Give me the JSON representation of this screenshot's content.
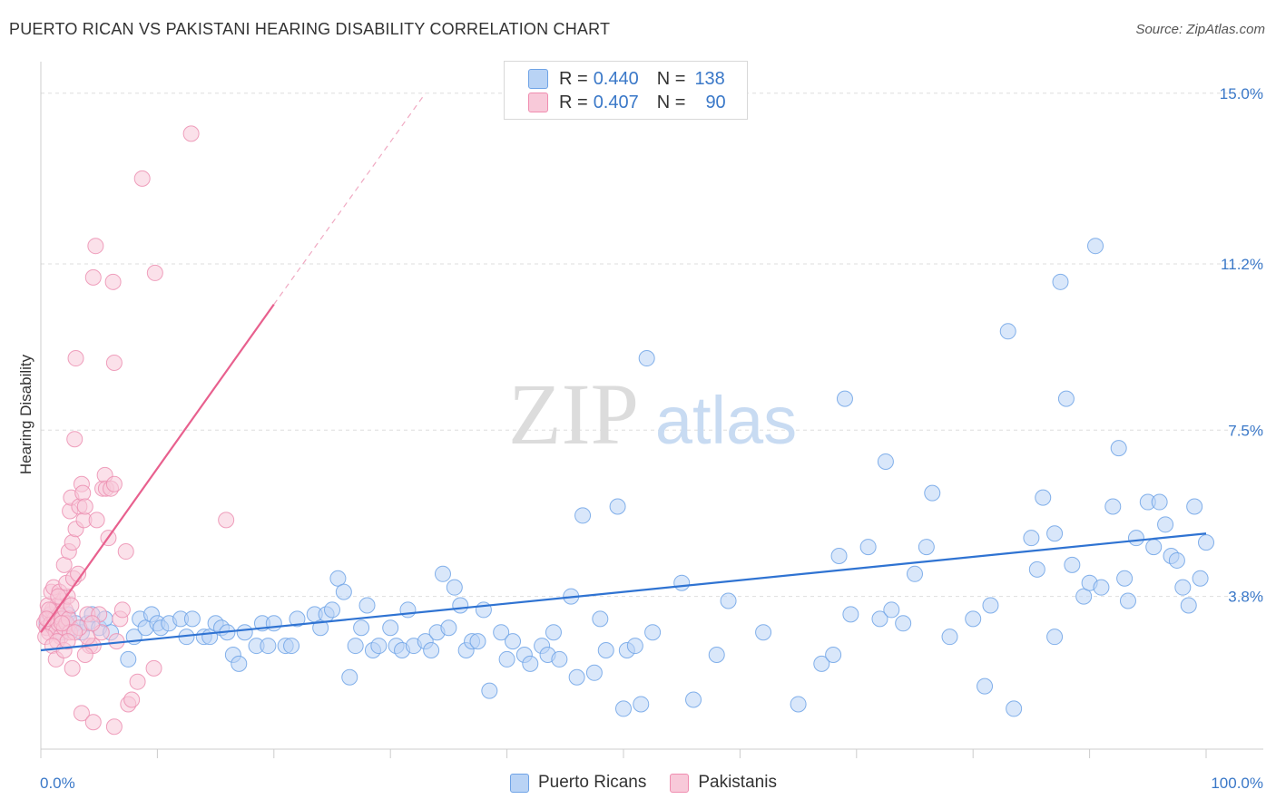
{
  "header": {
    "title": "PUERTO RICAN VS PAKISTANI HEARING DISABILITY CORRELATION CHART",
    "source": "Source: ZipAtlas.com"
  },
  "watermark": {
    "zip": "ZIP",
    "atlas": "atlas"
  },
  "legend": {
    "r_label": "R =",
    "n_label": "N =",
    "rows": [
      {
        "r": "0.440",
        "n": "138",
        "color": "#6fa3e6",
        "fill": "#b9d3f5"
      },
      {
        "r": "0.407",
        "n": "90",
        "color": "#f08db0",
        "fill": "#f8c9d9"
      }
    ]
  },
  "bottom_legend": {
    "items": [
      "Puerto Ricans",
      "Pakistanis"
    ]
  },
  "chart_data": {
    "type": "scatter",
    "title": "PUERTO RICAN VS PAKISTANI HEARING DISABILITY CORRELATION CHART",
    "xlabel": "",
    "ylabel": "Hearing Disability",
    "xlim": [
      0,
      100
    ],
    "ylim": [
      0.4,
      15.5
    ],
    "x_tick_labels": [
      "0.0%",
      "100.0%"
    ],
    "y_ticks": [
      3.8,
      7.5,
      11.2,
      15.0
    ],
    "y_tick_labels": [
      "3.8%",
      "7.5%",
      "11.2%",
      "15.0%"
    ],
    "colors": {
      "blue": "#2f73d2",
      "pink": "#e8608e",
      "blue_fill": "#b9d3f5",
      "pink_fill": "#f8c9d9"
    },
    "series": [
      {
        "name": "Puerto Ricans",
        "r": 0.44,
        "n": 138,
        "trend": {
          "x0": 0,
          "y0": 2.6,
          "x1": 100,
          "y1": 5.2
        },
        "points": [
          [
            0.5,
            3.2
          ],
          [
            0.8,
            3.4
          ],
          [
            1.0,
            3.3
          ],
          [
            1.2,
            3.1
          ],
          [
            1.5,
            3.3
          ],
          [
            1.8,
            3.0
          ],
          [
            2.0,
            3.3
          ],
          [
            2.3,
            3.4
          ],
          [
            2.6,
            3.1
          ],
          [
            3.0,
            3.2
          ],
          [
            3.5,
            3.0
          ],
          [
            4.0,
            3.2
          ],
          [
            4.4,
            3.4
          ],
          [
            5.0,
            3.1
          ],
          [
            5.5,
            3.3
          ],
          [
            6.0,
            3.0
          ],
          [
            7.5,
            2.4
          ],
          [
            8.0,
            2.9
          ],
          [
            8.5,
            3.3
          ],
          [
            9.0,
            3.1
          ],
          [
            9.5,
            3.4
          ],
          [
            10.0,
            3.2
          ],
          [
            10.3,
            3.1
          ],
          [
            11.0,
            3.2
          ],
          [
            12.0,
            3.3
          ],
          [
            12.5,
            2.9
          ],
          [
            13.0,
            3.3
          ],
          [
            14.0,
            2.9
          ],
          [
            14.5,
            2.9
          ],
          [
            15.0,
            3.2
          ],
          [
            15.5,
            3.1
          ],
          [
            16.0,
            3.0
          ],
          [
            16.5,
            2.5
          ],
          [
            17.0,
            2.3
          ],
          [
            17.5,
            3.0
          ],
          [
            18.5,
            2.7
          ],
          [
            19.0,
            3.2
          ],
          [
            19.5,
            2.7
          ],
          [
            20.0,
            3.2
          ],
          [
            21.0,
            2.7
          ],
          [
            21.5,
            2.7
          ],
          [
            22.0,
            3.3
          ],
          [
            23.5,
            3.4
          ],
          [
            24.0,
            3.1
          ],
          [
            24.5,
            3.4
          ],
          [
            25.0,
            3.5
          ],
          [
            25.5,
            4.2
          ],
          [
            26.0,
            3.9
          ],
          [
            26.5,
            2.0
          ],
          [
            27.0,
            2.7
          ],
          [
            27.5,
            3.1
          ],
          [
            28.0,
            3.6
          ],
          [
            28.5,
            2.6
          ],
          [
            29.0,
            2.7
          ],
          [
            30.0,
            3.1
          ],
          [
            30.5,
            2.7
          ],
          [
            31.0,
            2.6
          ],
          [
            31.5,
            3.5
          ],
          [
            32.0,
            2.7
          ],
          [
            33.0,
            2.8
          ],
          [
            33.5,
            2.6
          ],
          [
            34.0,
            3.0
          ],
          [
            34.5,
            4.3
          ],
          [
            35.0,
            3.1
          ],
          [
            35.5,
            4.0
          ],
          [
            36.0,
            3.6
          ],
          [
            36.5,
            2.6
          ],
          [
            37.0,
            2.8
          ],
          [
            37.5,
            2.8
          ],
          [
            38.0,
            3.5
          ],
          [
            38.5,
            1.7
          ],
          [
            39.5,
            3.0
          ],
          [
            40.0,
            2.4
          ],
          [
            40.5,
            2.8
          ],
          [
            41.5,
            2.5
          ],
          [
            42.0,
            2.3
          ],
          [
            43.0,
            2.7
          ],
          [
            43.5,
            2.5
          ],
          [
            44.0,
            3.0
          ],
          [
            44.5,
            2.4
          ],
          [
            45.5,
            3.8
          ],
          [
            46.0,
            2.0
          ],
          [
            46.5,
            5.6
          ],
          [
            47.5,
            2.1
          ],
          [
            48.0,
            3.3
          ],
          [
            48.5,
            2.6
          ],
          [
            49.5,
            5.8
          ],
          [
            50.0,
            1.3
          ],
          [
            50.3,
            2.6
          ],
          [
            51.0,
            2.7
          ],
          [
            52.0,
            9.1
          ],
          [
            51.5,
            1.4
          ],
          [
            52.5,
            3.0
          ],
          [
            55.0,
            4.1
          ],
          [
            56.0,
            1.5
          ],
          [
            58.0,
            2.5
          ],
          [
            59.0,
            3.7
          ],
          [
            65.0,
            1.4
          ],
          [
            67.0,
            2.3
          ],
          [
            68.0,
            2.5
          ],
          [
            68.5,
            4.7
          ],
          [
            69.0,
            8.2
          ],
          [
            69.5,
            3.4
          ],
          [
            71.0,
            4.9
          ],
          [
            72.0,
            3.3
          ],
          [
            72.5,
            6.8
          ],
          [
            73.0,
            3.5
          ],
          [
            74.0,
            3.2
          ],
          [
            76.0,
            4.9
          ],
          [
            76.5,
            6.1
          ],
          [
            78.0,
            2.9
          ],
          [
            80.0,
            3.3
          ],
          [
            81.0,
            1.8
          ],
          [
            81.5,
            3.6
          ],
          [
            83.0,
            9.7
          ],
          [
            83.5,
            1.3
          ],
          [
            85.0,
            5.1
          ],
          [
            85.5,
            4.4
          ],
          [
            86.0,
            6.0
          ],
          [
            87.0,
            2.9
          ],
          [
            87.5,
            10.8
          ],
          [
            88.0,
            8.2
          ],
          [
            88.5,
            4.5
          ],
          [
            89.5,
            3.8
          ],
          [
            90.0,
            4.1
          ],
          [
            90.5,
            11.6
          ],
          [
            91.0,
            4.0
          ],
          [
            92.0,
            5.8
          ],
          [
            92.5,
            7.1
          ],
          [
            93.0,
            4.2
          ],
          [
            93.3,
            3.7
          ],
          [
            94.0,
            5.1
          ],
          [
            95.0,
            5.9
          ],
          [
            95.5,
            4.9
          ],
          [
            96.0,
            5.9
          ],
          [
            96.5,
            5.4
          ],
          [
            97.0,
            4.7
          ],
          [
            97.5,
            4.6
          ],
          [
            98.0,
            4.0
          ],
          [
            98.5,
            3.6
          ],
          [
            99.0,
            5.8
          ],
          [
            99.5,
            4.2
          ],
          [
            100.0,
            5.0
          ],
          [
            87.0,
            5.2
          ],
          [
            75.0,
            4.3
          ],
          [
            62.0,
            3.0
          ]
        ]
      },
      {
        "name": "Pakistanis",
        "r": 0.407,
        "n": 90,
        "trend": {
          "x0": 0,
          "y0": 3.0,
          "x1": 20,
          "y1": 10.3,
          "dashed_to_x": 33,
          "dashed_to_y": 15.0
        },
        "points": [
          [
            0.3,
            3.2
          ],
          [
            0.5,
            3.1
          ],
          [
            0.6,
            3.3
          ],
          [
            0.7,
            3.0
          ],
          [
            0.8,
            3.4
          ],
          [
            0.9,
            3.2
          ],
          [
            1.0,
            3.5
          ],
          [
            1.1,
            3.1
          ],
          [
            1.2,
            3.3
          ],
          [
            1.3,
            3.0
          ],
          [
            1.4,
            3.6
          ],
          [
            1.5,
            3.2
          ],
          [
            1.6,
            3.4
          ],
          [
            1.7,
            2.9
          ],
          [
            1.8,
            3.3
          ],
          [
            1.9,
            3.7
          ],
          [
            2.0,
            3.1
          ],
          [
            2.1,
            3.5
          ],
          [
            2.2,
            3.2
          ],
          [
            2.3,
            3.8
          ],
          [
            2.4,
            3.3
          ],
          [
            2.5,
            3.0
          ],
          [
            2.6,
            3.6
          ],
          [
            0.4,
            2.9
          ],
          [
            0.6,
            3.6
          ],
          [
            0.9,
            3.9
          ],
          [
            1.1,
            4.0
          ],
          [
            1.4,
            2.8
          ],
          [
            1.6,
            3.9
          ],
          [
            2.0,
            4.5
          ],
          [
            2.2,
            4.1
          ],
          [
            2.4,
            4.8
          ],
          [
            2.5,
            5.7
          ],
          [
            2.6,
            6.0
          ],
          [
            2.7,
            5.0
          ],
          [
            2.8,
            4.2
          ],
          [
            3.0,
            5.3
          ],
          [
            3.2,
            4.3
          ],
          [
            3.3,
            5.8
          ],
          [
            3.5,
            6.3
          ],
          [
            3.6,
            6.1
          ],
          [
            3.7,
            5.5
          ],
          [
            3.8,
            5.8
          ],
          [
            4.0,
            3.4
          ],
          [
            4.2,
            2.7
          ],
          [
            4.5,
            2.7
          ],
          [
            4.8,
            5.5
          ],
          [
            5.0,
            3.4
          ],
          [
            5.3,
            6.2
          ],
          [
            5.5,
            6.5
          ],
          [
            5.6,
            6.2
          ],
          [
            5.8,
            5.1
          ],
          [
            6.0,
            6.2
          ],
          [
            6.3,
            6.3
          ],
          [
            6.5,
            2.8
          ],
          [
            6.8,
            3.3
          ],
          [
            7.0,
            3.5
          ],
          [
            7.3,
            4.8
          ],
          [
            7.5,
            1.4
          ],
          [
            7.8,
            1.5
          ],
          [
            8.3,
            1.9
          ],
          [
            9.7,
            2.2
          ],
          [
            1.0,
            2.7
          ],
          [
            1.3,
            2.4
          ],
          [
            2.0,
            2.6
          ],
          [
            2.7,
            2.2
          ],
          [
            3.5,
            1.2
          ],
          [
            4.5,
            1.0
          ],
          [
            6.3,
            0.9
          ],
          [
            2.9,
            7.3
          ],
          [
            3.0,
            9.1
          ],
          [
            4.5,
            10.9
          ],
          [
            4.7,
            11.6
          ],
          [
            6.2,
            10.8
          ],
          [
            6.3,
            9.0
          ],
          [
            8.7,
            13.1
          ],
          [
            9.8,
            11.0
          ],
          [
            12.9,
            14.1
          ],
          [
            15.9,
            5.5
          ],
          [
            4.0,
            2.9
          ],
          [
            3.3,
            3.1
          ],
          [
            1.8,
            3.2
          ],
          [
            0.7,
            3.5
          ],
          [
            2.9,
            3.0
          ],
          [
            3.8,
            2.5
          ],
          [
            5.2,
            3.0
          ],
          [
            1.5,
            3.8
          ],
          [
            2.3,
            2.8
          ],
          [
            0.5,
            3.3
          ],
          [
            4.4,
            3.2
          ]
        ]
      }
    ]
  }
}
